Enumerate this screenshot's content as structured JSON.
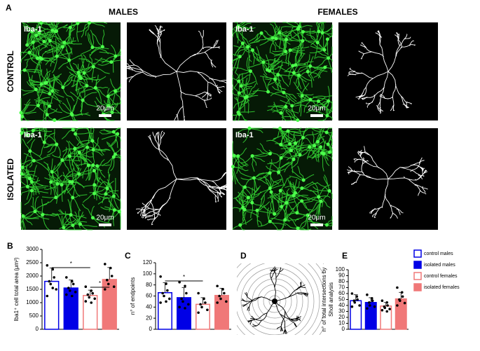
{
  "figure": {
    "panels": [
      "A",
      "B",
      "C",
      "D",
      "E"
    ],
    "column_headers": [
      "MALES",
      "FEMALES"
    ],
    "row_headers": [
      "CONTROL",
      "ISOLATED"
    ],
    "images": [
      {
        "label": "Iba-1",
        "scale": "20μm"
      },
      {
        "label": "Iba-1",
        "scale": "20μm"
      },
      {
        "label": "Iba-1",
        "scale": "20μm"
      },
      {
        "label": "Iba-1",
        "scale": "20μm"
      }
    ]
  },
  "legend": [
    {
      "name": "control males",
      "fill": "#ffffff",
      "stroke": "#0000e6"
    },
    {
      "name": "isolated males",
      "fill": "#0000e6",
      "stroke": "#0000e6"
    },
    {
      "name": "control females",
      "fill": "#ffffff",
      "stroke": "#f07878"
    },
    {
      "name": "isolated females",
      "fill": "#f07878",
      "stroke": "#f07878"
    }
  ],
  "chart_data": [
    {
      "type": "bar",
      "ylabel": "Iba1⁺ cell total area (μm²)",
      "ylim": [
        0,
        3000
      ],
      "yticks": [
        0,
        500,
        1000,
        1500,
        2000,
        2500,
        3000
      ],
      "values": [
        1800,
        1550,
        1270,
        1870
      ],
      "errors": [
        500,
        300,
        200,
        450
      ],
      "points": [
        [
          2400,
          2250,
          1950,
          1800,
          1700,
          1500,
          1250,
          1550
        ],
        [
          1950,
          1800,
          1700,
          1550,
          1450,
          1400,
          1300,
          1250
        ],
        [
          1600,
          1450,
          1350,
          1300,
          1200,
          1150,
          1050,
          1000
        ],
        [
          2450,
          2300,
          2000,
          1850,
          1700,
          1600,
          1500
        ]
      ],
      "significance": [
        {
          "text": "*",
          "groups": [
            0,
            2
          ]
        },
        {
          "text": "*",
          "groups": [
            2,
            3
          ]
        }
      ]
    },
    {
      "type": "bar",
      "ylabel": "n° of endpoints",
      "ylim": [
        0,
        120
      ],
      "yticks": [
        0,
        20,
        40,
        60,
        80,
        100,
        120
      ],
      "values": [
        66,
        57,
        45,
        61
      ],
      "errors": [
        18,
        18,
        12,
        13
      ],
      "points": [
        [
          95,
          82,
          70,
          65,
          60,
          55,
          48,
          50
        ],
        [
          85,
          78,
          65,
          55,
          50,
          45,
          40,
          38
        ],
        [
          65,
          55,
          48,
          45,
          40,
          35,
          30
        ],
        [
          78,
          72,
          65,
          60,
          55,
          50,
          48
        ]
      ],
      "significance": [
        {
          "text": "*",
          "groups": [
            0,
            2
          ]
        }
      ]
    },
    {
      "type": "bar",
      "ylabel": "n° of total intersections by Sholl analysis",
      "ylim": [
        0,
        100
      ],
      "yticks": [
        0,
        10,
        20,
        30,
        40,
        50,
        60,
        70,
        80,
        90,
        100
      ],
      "values": [
        48,
        45,
        39,
        51
      ],
      "errors": [
        10,
        8,
        6,
        11
      ],
      "points": [
        [
          60,
          55,
          50,
          48,
          45,
          40,
          38
        ],
        [
          58,
          52,
          48,
          45,
          40,
          38,
          35
        ],
        [
          48,
          45,
          40,
          38,
          36,
          34,
          32,
          30
        ],
        [
          70,
          62,
          55,
          50,
          48,
          44,
          40
        ]
      ],
      "significance": []
    }
  ]
}
